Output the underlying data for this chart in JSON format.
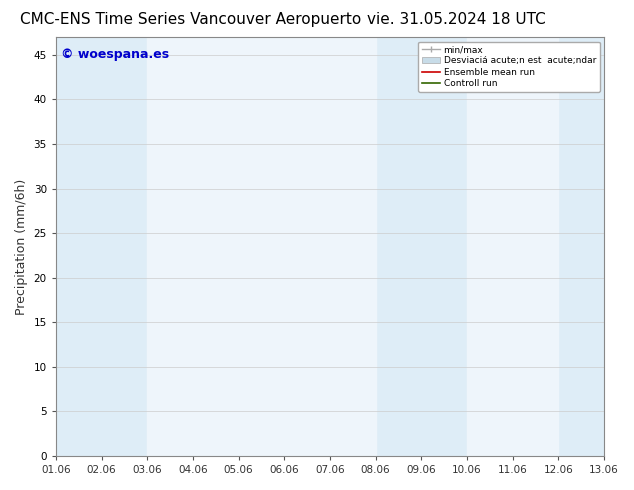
{
  "title": "CMC-ENS Time Series Vancouver Aeropuerto",
  "title_right": "vie. 31.05.2024 18 UTC",
  "ylabel": "Precipitation (mm/6h)",
  "watermark": "© woespana.es",
  "bg_color": "#ffffff",
  "plot_bg_color": "#deedf7",
  "ylim": [
    0,
    47
  ],
  "yticks": [
    0,
    5,
    10,
    15,
    20,
    25,
    30,
    35,
    40,
    45
  ],
  "xtick_labels": [
    "01.06",
    "02.06",
    "03.06",
    "04.06",
    "05.06",
    "06.06",
    "07.06",
    "08.06",
    "09.06",
    "10.06",
    "11.06",
    "12.06",
    "13.06"
  ],
  "xlim": [
    0,
    12
  ],
  "shade_light_color": "#eef5fb",
  "shade_dark_color": "#deedf7",
  "title_fontsize": 11,
  "tick_fontsize": 7.5,
  "ylabel_fontsize": 9,
  "watermark_color": "#0000cc",
  "watermark_fontsize": 9,
  "legend_min_max_color": "#aaaaaa",
  "legend_std_color": "#c8dce8",
  "legend_ensemble_color": "#cc0000",
  "legend_control_color": "#336600"
}
